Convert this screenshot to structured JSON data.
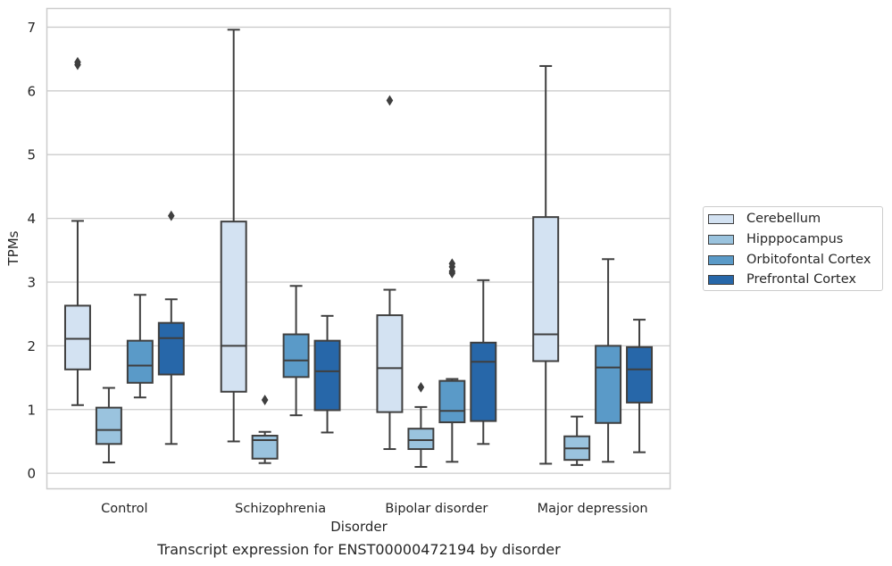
{
  "chart_data": {
    "type": "box",
    "title": "Transcript expression for ENST00000472194 by disorder",
    "xlabel": "Disorder",
    "ylabel": "TPMs",
    "ylim": [
      -0.25,
      7.3
    ],
    "yticks": [
      0,
      1,
      2,
      3,
      4,
      5,
      6,
      7
    ],
    "grid": true,
    "legend_position": "right",
    "categories": [
      "Control",
      "Schizophrenia",
      "Bipolar disorder",
      "Major depression"
    ],
    "series": [
      {
        "name": "Cerebellum",
        "color": "#d3e2f2",
        "boxes": [
          {
            "min": 1.07,
            "q1": 1.63,
            "median": 2.11,
            "q3": 2.63,
            "max": 3.96,
            "outliers": [
              6.41,
              6.45
            ]
          },
          {
            "min": 0.5,
            "q1": 1.28,
            "median": 2.0,
            "q3": 3.95,
            "max": 6.96,
            "outliers": []
          },
          {
            "min": 0.38,
            "q1": 0.96,
            "median": 1.65,
            "q3": 2.48,
            "max": 2.88,
            "outliers": [
              5.85
            ]
          },
          {
            "min": 0.15,
            "q1": 1.76,
            "median": 2.18,
            "q3": 4.02,
            "max": 6.39,
            "outliers": []
          }
        ]
      },
      {
        "name": "Hipppocampus",
        "color": "#9ac3de",
        "boxes": [
          {
            "min": 0.17,
            "q1": 0.46,
            "median": 0.68,
            "q3": 1.03,
            "max": 1.34,
            "outliers": []
          },
          {
            "min": 0.16,
            "q1": 0.23,
            "median": 0.52,
            "q3": 0.59,
            "max": 0.65,
            "outliers": [
              1.15
            ]
          },
          {
            "min": 0.1,
            "q1": 0.38,
            "median": 0.52,
            "q3": 0.7,
            "max": 1.04,
            "outliers": [
              1.35
            ]
          },
          {
            "min": 0.13,
            "q1": 0.21,
            "median": 0.39,
            "q3": 0.58,
            "max": 0.89,
            "outliers": []
          }
        ]
      },
      {
        "name": "Orbitofontal Cortex",
        "color": "#5a9ac8",
        "boxes": [
          {
            "min": 1.19,
            "q1": 1.42,
            "median": 1.69,
            "q3": 2.08,
            "max": 2.8,
            "outliers": []
          },
          {
            "min": 0.91,
            "q1": 1.51,
            "median": 1.77,
            "q3": 2.18,
            "max": 2.94,
            "outliers": []
          },
          {
            "min": 0.18,
            "q1": 0.8,
            "median": 0.98,
            "q3": 1.45,
            "max": 1.48,
            "outliers": [
              3.14,
              3.17,
              3.24,
              3.29
            ]
          },
          {
            "min": 0.18,
            "q1": 0.79,
            "median": 1.66,
            "q3": 2.0,
            "max": 3.36,
            "outliers": []
          }
        ]
      },
      {
        "name": "Prefrontal Cortex",
        "color": "#2767a9",
        "boxes": [
          {
            "min": 0.46,
            "q1": 1.55,
            "median": 2.12,
            "q3": 2.36,
            "max": 2.73,
            "outliers": [
              4.04
            ]
          },
          {
            "min": 0.64,
            "q1": 0.99,
            "median": 1.6,
            "q3": 2.08,
            "max": 2.47,
            "outliers": []
          },
          {
            "min": 0.46,
            "q1": 0.82,
            "median": 1.75,
            "q3": 2.05,
            "max": 3.03,
            "outliers": []
          },
          {
            "min": 0.33,
            "q1": 1.11,
            "median": 1.63,
            "q3": 1.98,
            "max": 2.41,
            "outliers": []
          }
        ]
      }
    ]
  }
}
